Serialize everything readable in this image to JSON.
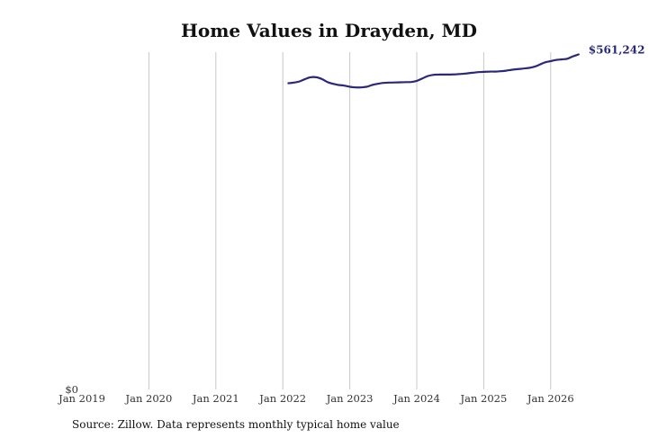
{
  "title": "Home Values in Drayden, MD",
  "source": "Source: Zillow. Data represents monthly typical home value",
  "colors": {
    "line": "#2b2878",
    "grid": "#c8c8c8",
    "label": "#2b2878"
  },
  "chart_data": {
    "type": "line",
    "title": "Home Values in Drayden, MD",
    "xlabel": "",
    "ylabel": "",
    "x_tick_labels": [
      "Jan 2019",
      "Jan 2020",
      "Jan 2021",
      "Jan 2022",
      "Jan 2023",
      "Jan 2024",
      "Jan 2025",
      "Jan 2026"
    ],
    "y_tick_labels": [
      "$0"
    ],
    "xlim": [
      "2019-01",
      "2026-07"
    ],
    "ylim": [
      0,
      565000
    ],
    "grid": "vertical",
    "end_label": "$561,242",
    "series": [
      {
        "x": [
          "2022-02",
          "2022-03",
          "2022-04",
          "2022-05",
          "2022-06",
          "2022-07",
          "2022-08",
          "2022-09",
          "2022-10",
          "2022-11",
          "2022-12",
          "2023-01",
          "2023-02",
          "2023-03",
          "2023-04",
          "2023-05",
          "2023-06",
          "2023-07",
          "2023-08",
          "2023-09",
          "2023-10",
          "2023-11",
          "2023-12",
          "2024-01",
          "2024-02",
          "2024-03",
          "2024-04",
          "2024-05",
          "2024-06",
          "2024-07",
          "2024-08",
          "2024-09",
          "2024-10",
          "2024-11",
          "2024-12",
          "2025-01",
          "2025-02",
          "2025-03",
          "2025-04",
          "2025-05",
          "2025-06",
          "2025-07",
          "2025-08",
          "2025-09",
          "2025-10",
          "2025-11",
          "2025-12",
          "2026-01",
          "2026-02",
          "2026-03",
          "2026-04",
          "2026-05",
          "2026-06"
        ],
        "y": [
          513000,
          514000,
          516000,
          520000,
          523000,
          523000,
          520000,
          515000,
          512000,
          510000,
          509000,
          507000,
          506000,
          506000,
          507000,
          510000,
          512000,
          513500,
          514000,
          514200,
          514500,
          514800,
          515000,
          517000,
          521000,
          525000,
          527000,
          527500,
          527500,
          527500,
          528000,
          528500,
          529500,
          530500,
          531500,
          532000,
          532500,
          532500,
          533000,
          534000,
          535500,
          536500,
          537500,
          538500,
          540500,
          544000,
          548000,
          550000,
          552000,
          553000,
          554000,
          558000,
          561242
        ]
      }
    ]
  }
}
